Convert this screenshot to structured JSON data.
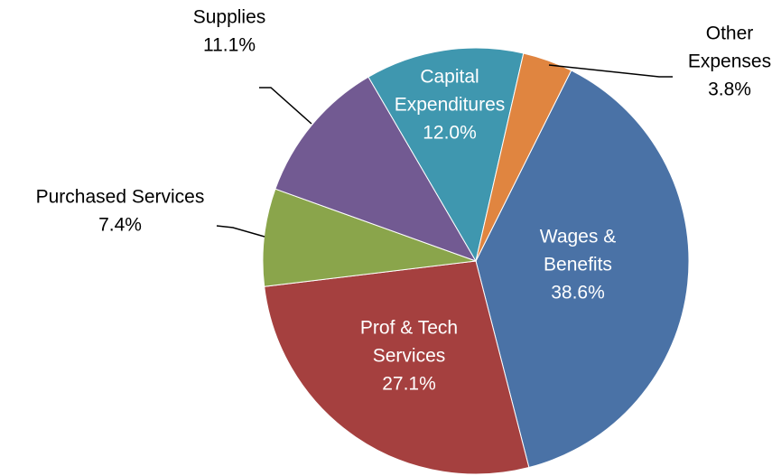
{
  "chart_data": {
    "type": "pie",
    "categories": [
      [
        "Wages &",
        "Benefits"
      ],
      [
        "Prof & Tech",
        "Services"
      ],
      [
        "Purchased  Services"
      ],
      [
        "Supplies"
      ],
      [
        "Capital",
        "Expenditures"
      ],
      [
        "Other",
        "Expenses"
      ]
    ],
    "values": [
      38.6,
      27.1,
      7.4,
      11.1,
      12.0,
      3.8
    ],
    "value_labels": [
      "38.6%",
      "27.1%",
      "7.4%",
      "11.1%",
      "12.0%",
      "3.8%"
    ],
    "colors": [
      "#4a72a6",
      "#a5403f",
      "#8aa54b",
      "#725a92",
      "#3f97af",
      "#e08540"
    ]
  }
}
